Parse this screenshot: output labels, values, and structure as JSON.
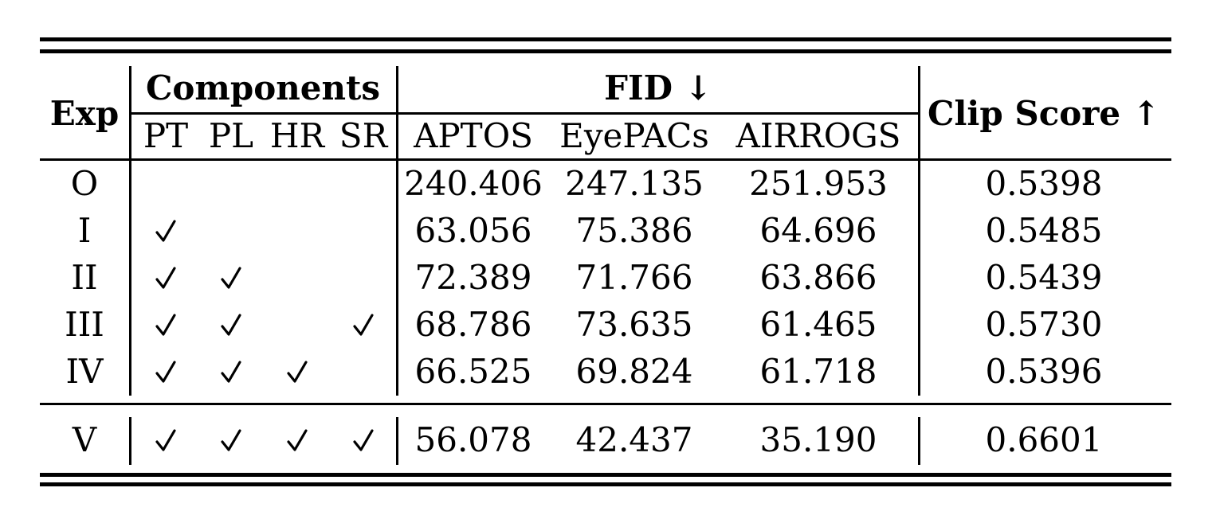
{
  "table": {
    "header": {
      "exp": "Exp",
      "components": "Components",
      "fid": "FID ↓",
      "clip": "Clip Score ↑",
      "component_cols": [
        "PT",
        "PL",
        "HR",
        "SR"
      ],
      "fid_cols": [
        "APTOS",
        "EyePACs",
        "AIRROGS"
      ]
    },
    "rows": [
      {
        "exp": "O",
        "pt": false,
        "pl": false,
        "hr": false,
        "sr": false,
        "aptos": "240.406",
        "eyepacs": "247.135",
        "airrogs": "251.953",
        "clip": "0.5398"
      },
      {
        "exp": "I",
        "pt": true,
        "pl": false,
        "hr": false,
        "sr": false,
        "aptos": "63.056",
        "eyepacs": "75.386",
        "airrogs": "64.696",
        "clip": "0.5485"
      },
      {
        "exp": "II",
        "pt": true,
        "pl": true,
        "hr": false,
        "sr": false,
        "aptos": "72.389",
        "eyepacs": "71.766",
        "airrogs": "63.866",
        "clip": "0.5439"
      },
      {
        "exp": "III",
        "pt": true,
        "pl": true,
        "hr": false,
        "sr": true,
        "aptos": "68.786",
        "eyepacs": "73.635",
        "airrogs": "61.465",
        "clip": "0.5730"
      },
      {
        "exp": "IV",
        "pt": true,
        "pl": true,
        "hr": true,
        "sr": false,
        "aptos": "66.525",
        "eyepacs": "69.824",
        "airrogs": "61.718",
        "clip": "0.5396"
      },
      {
        "exp": "V",
        "pt": true,
        "pl": true,
        "hr": true,
        "sr": true,
        "aptos": "56.078",
        "eyepacs": "42.437",
        "airrogs": "35.190",
        "clip": "0.6601"
      }
    ]
  }
}
